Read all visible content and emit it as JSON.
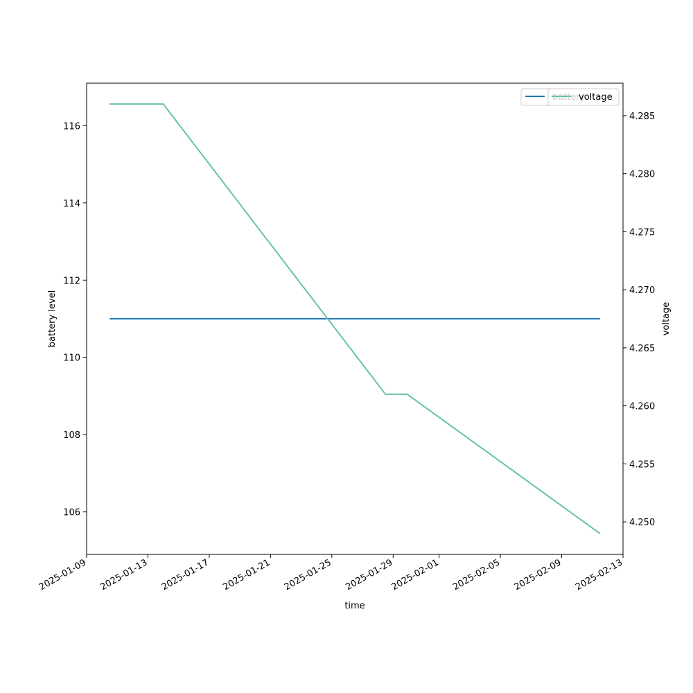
{
  "chart_data": {
    "type": "line",
    "xlabel": "time",
    "ylabel": "battery level",
    "y2label": "voltage",
    "x_range": [
      "2025-01-09",
      "2025-02-13"
    ],
    "y_range": [
      104.9,
      117.1
    ],
    "y2_range": [
      4.2472,
      4.2878
    ],
    "x_ticks": [
      "2025-01-09",
      "2025-01-13",
      "2025-01-17",
      "2025-01-21",
      "2025-01-25",
      "2025-01-29",
      "2025-02-01",
      "2025-02-05",
      "2025-02-09",
      "2025-02-13"
    ],
    "y_ticks": [
      106,
      108,
      110,
      112,
      114,
      116
    ],
    "y2_ticks": [
      4.25,
      4.255,
      4.26,
      4.265,
      4.27,
      4.275,
      4.28,
      4.285
    ],
    "y2_tick_labels": [
      "4.250",
      "4.255",
      "4.260",
      "4.265",
      "4.270",
      "4.275",
      "4.280",
      "4.285"
    ],
    "legend_placement": "top-right",
    "grid": false,
    "series": [
      {
        "name": "battery",
        "axis": "left",
        "color": "#1f77b4",
        "x": [
          "2025-01-10T12:00",
          "2025-02-11T12:00"
        ],
        "values": [
          111,
          111
        ]
      },
      {
        "name": "voltage",
        "axis": "right",
        "color": "#66c2a5",
        "x": [
          "2025-01-10T12:00",
          "2025-01-14T00:00",
          "2025-01-28T12:00",
          "2025-01-29T22:00",
          "2025-02-11T12:00"
        ],
        "values": [
          4.286,
          4.286,
          4.261,
          4.261,
          4.249
        ]
      }
    ]
  }
}
